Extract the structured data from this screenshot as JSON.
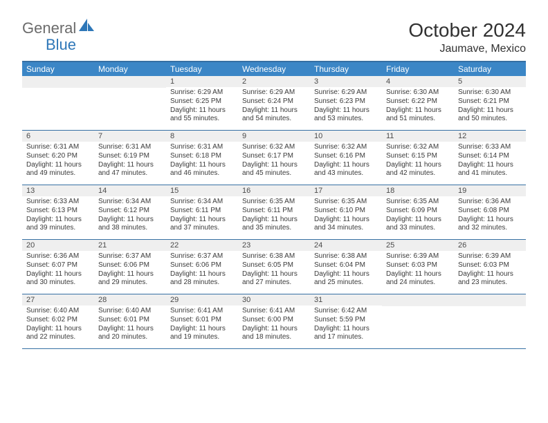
{
  "logo": {
    "general": "General",
    "blue": "Blue"
  },
  "title": "October 2024",
  "subtitle": "Jaumave, Mexico",
  "colors": {
    "header_bg": "#3b86c6",
    "header_text": "#ffffff",
    "border": "#356fa3",
    "daynum_bg": "#efefef",
    "text": "#3a3a3a",
    "title_text": "#313131",
    "logo_gray": "#6b6b6b",
    "logo_blue": "#2e77b8"
  },
  "dow": [
    "Sunday",
    "Monday",
    "Tuesday",
    "Wednesday",
    "Thursday",
    "Friday",
    "Saturday"
  ],
  "weeks": [
    [
      null,
      null,
      {
        "n": "1",
        "sr": "Sunrise: 6:29 AM",
        "ss": "Sunset: 6:25 PM",
        "dl": "Daylight: 11 hours and 55 minutes."
      },
      {
        "n": "2",
        "sr": "Sunrise: 6:29 AM",
        "ss": "Sunset: 6:24 PM",
        "dl": "Daylight: 11 hours and 54 minutes."
      },
      {
        "n": "3",
        "sr": "Sunrise: 6:29 AM",
        "ss": "Sunset: 6:23 PM",
        "dl": "Daylight: 11 hours and 53 minutes."
      },
      {
        "n": "4",
        "sr": "Sunrise: 6:30 AM",
        "ss": "Sunset: 6:22 PM",
        "dl": "Daylight: 11 hours and 51 minutes."
      },
      {
        "n": "5",
        "sr": "Sunrise: 6:30 AM",
        "ss": "Sunset: 6:21 PM",
        "dl": "Daylight: 11 hours and 50 minutes."
      }
    ],
    [
      {
        "n": "6",
        "sr": "Sunrise: 6:31 AM",
        "ss": "Sunset: 6:20 PM",
        "dl": "Daylight: 11 hours and 49 minutes."
      },
      {
        "n": "7",
        "sr": "Sunrise: 6:31 AM",
        "ss": "Sunset: 6:19 PM",
        "dl": "Daylight: 11 hours and 47 minutes."
      },
      {
        "n": "8",
        "sr": "Sunrise: 6:31 AM",
        "ss": "Sunset: 6:18 PM",
        "dl": "Daylight: 11 hours and 46 minutes."
      },
      {
        "n": "9",
        "sr": "Sunrise: 6:32 AM",
        "ss": "Sunset: 6:17 PM",
        "dl": "Daylight: 11 hours and 45 minutes."
      },
      {
        "n": "10",
        "sr": "Sunrise: 6:32 AM",
        "ss": "Sunset: 6:16 PM",
        "dl": "Daylight: 11 hours and 43 minutes."
      },
      {
        "n": "11",
        "sr": "Sunrise: 6:32 AM",
        "ss": "Sunset: 6:15 PM",
        "dl": "Daylight: 11 hours and 42 minutes."
      },
      {
        "n": "12",
        "sr": "Sunrise: 6:33 AM",
        "ss": "Sunset: 6:14 PM",
        "dl": "Daylight: 11 hours and 41 minutes."
      }
    ],
    [
      {
        "n": "13",
        "sr": "Sunrise: 6:33 AM",
        "ss": "Sunset: 6:13 PM",
        "dl": "Daylight: 11 hours and 39 minutes."
      },
      {
        "n": "14",
        "sr": "Sunrise: 6:34 AM",
        "ss": "Sunset: 6:12 PM",
        "dl": "Daylight: 11 hours and 38 minutes."
      },
      {
        "n": "15",
        "sr": "Sunrise: 6:34 AM",
        "ss": "Sunset: 6:11 PM",
        "dl": "Daylight: 11 hours and 37 minutes."
      },
      {
        "n": "16",
        "sr": "Sunrise: 6:35 AM",
        "ss": "Sunset: 6:11 PM",
        "dl": "Daylight: 11 hours and 35 minutes."
      },
      {
        "n": "17",
        "sr": "Sunrise: 6:35 AM",
        "ss": "Sunset: 6:10 PM",
        "dl": "Daylight: 11 hours and 34 minutes."
      },
      {
        "n": "18",
        "sr": "Sunrise: 6:35 AM",
        "ss": "Sunset: 6:09 PM",
        "dl": "Daylight: 11 hours and 33 minutes."
      },
      {
        "n": "19",
        "sr": "Sunrise: 6:36 AM",
        "ss": "Sunset: 6:08 PM",
        "dl": "Daylight: 11 hours and 32 minutes."
      }
    ],
    [
      {
        "n": "20",
        "sr": "Sunrise: 6:36 AM",
        "ss": "Sunset: 6:07 PM",
        "dl": "Daylight: 11 hours and 30 minutes."
      },
      {
        "n": "21",
        "sr": "Sunrise: 6:37 AM",
        "ss": "Sunset: 6:06 PM",
        "dl": "Daylight: 11 hours and 29 minutes."
      },
      {
        "n": "22",
        "sr": "Sunrise: 6:37 AM",
        "ss": "Sunset: 6:06 PM",
        "dl": "Daylight: 11 hours and 28 minutes."
      },
      {
        "n": "23",
        "sr": "Sunrise: 6:38 AM",
        "ss": "Sunset: 6:05 PM",
        "dl": "Daylight: 11 hours and 27 minutes."
      },
      {
        "n": "24",
        "sr": "Sunrise: 6:38 AM",
        "ss": "Sunset: 6:04 PM",
        "dl": "Daylight: 11 hours and 25 minutes."
      },
      {
        "n": "25",
        "sr": "Sunrise: 6:39 AM",
        "ss": "Sunset: 6:03 PM",
        "dl": "Daylight: 11 hours and 24 minutes."
      },
      {
        "n": "26",
        "sr": "Sunrise: 6:39 AM",
        "ss": "Sunset: 6:03 PM",
        "dl": "Daylight: 11 hours and 23 minutes."
      }
    ],
    [
      {
        "n": "27",
        "sr": "Sunrise: 6:40 AM",
        "ss": "Sunset: 6:02 PM",
        "dl": "Daylight: 11 hours and 22 minutes."
      },
      {
        "n": "28",
        "sr": "Sunrise: 6:40 AM",
        "ss": "Sunset: 6:01 PM",
        "dl": "Daylight: 11 hours and 20 minutes."
      },
      {
        "n": "29",
        "sr": "Sunrise: 6:41 AM",
        "ss": "Sunset: 6:01 PM",
        "dl": "Daylight: 11 hours and 19 minutes."
      },
      {
        "n": "30",
        "sr": "Sunrise: 6:41 AM",
        "ss": "Sunset: 6:00 PM",
        "dl": "Daylight: 11 hours and 18 minutes."
      },
      {
        "n": "31",
        "sr": "Sunrise: 6:42 AM",
        "ss": "Sunset: 5:59 PM",
        "dl": "Daylight: 11 hours and 17 minutes."
      },
      null,
      null
    ]
  ]
}
